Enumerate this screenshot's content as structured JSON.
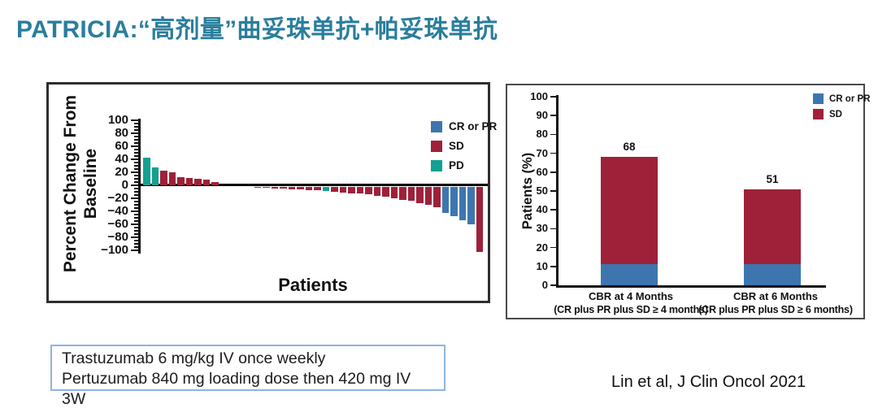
{
  "slide": {
    "title": "PATRICIA:“高剂量”曲妥珠单抗+帕妥珠单抗",
    "title_color": "#2A7E9C",
    "citation": "Lin et al, J Clin Oncol 2021",
    "dose_box": {
      "line1": "Trastuzumab 6 mg/kg IV once weekly",
      "line2": "Pertuzumab 840 mg loading dose then 420 mg IV 3W"
    }
  },
  "colors": {
    "cr_pr": "#3D76AE",
    "sd": "#9E2139",
    "pd": "#14A092",
    "axis": "#111111",
    "dose_box_border": "#8FB3E0"
  },
  "chart_data": [
    {
      "type": "bar",
      "subtype": "waterfall",
      "title": "",
      "xlabel": "Patients",
      "ylabel": "Percent Change From Baseline",
      "ylim": [
        -100,
        100
      ],
      "yticks": [
        100,
        80,
        60,
        40,
        20,
        0,
        -20,
        -40,
        -60,
        -80,
        -100
      ],
      "grid": false,
      "legend_position": "top-right",
      "legend": [
        {
          "label": "CR or PR",
          "color_key": "cr_pr"
        },
        {
          "label": "SD",
          "color_key": "sd"
        },
        {
          "label": "PD",
          "color_key": "pd"
        }
      ],
      "bars": [
        {
          "value": 42,
          "response": "PD"
        },
        {
          "value": 28,
          "response": "PD"
        },
        {
          "value": 23,
          "response": "SD"
        },
        {
          "value": 20,
          "response": "SD"
        },
        {
          "value": 12,
          "response": "SD"
        },
        {
          "value": 11,
          "response": "SD"
        },
        {
          "value": 10,
          "response": "SD"
        },
        {
          "value": 9,
          "response": "SD"
        },
        {
          "value": 5,
          "response": "SD"
        },
        {
          "value": 0,
          "response": "SD"
        },
        {
          "value": 0,
          "response": "SD"
        },
        {
          "value": 0,
          "response": "SD"
        },
        {
          "value": 0,
          "response": "SD"
        },
        {
          "value": -2,
          "response": "SD"
        },
        {
          "value": -2,
          "response": "SD"
        },
        {
          "value": -3,
          "response": "SD"
        },
        {
          "value": -3,
          "response": "SD"
        },
        {
          "value": -4,
          "response": "SD"
        },
        {
          "value": -4,
          "response": "SD"
        },
        {
          "value": -5,
          "response": "SD"
        },
        {
          "value": -6,
          "response": "SD"
        },
        {
          "value": -7,
          "response": "PD"
        },
        {
          "value": -8,
          "response": "SD"
        },
        {
          "value": -9,
          "response": "SD"
        },
        {
          "value": -10,
          "response": "SD"
        },
        {
          "value": -11,
          "response": "SD"
        },
        {
          "value": -12,
          "response": "SD"
        },
        {
          "value": -14,
          "response": "SD"
        },
        {
          "value": -16,
          "response": "SD"
        },
        {
          "value": -18,
          "response": "SD"
        },
        {
          "value": -20,
          "response": "SD"
        },
        {
          "value": -22,
          "response": "SD"
        },
        {
          "value": -25,
          "response": "SD"
        },
        {
          "value": -28,
          "response": "SD"
        },
        {
          "value": -32,
          "response": "SD"
        },
        {
          "value": -40,
          "response": "CR or PR"
        },
        {
          "value": -46,
          "response": "CR or PR"
        },
        {
          "value": -52,
          "response": "CR or PR"
        },
        {
          "value": -58,
          "response": "CR or PR"
        },
        {
          "value": -100,
          "response": "SD"
        }
      ]
    },
    {
      "type": "bar",
      "subtype": "stacked",
      "title": "",
      "ylabel": "Patients (%)",
      "ylim": [
        0,
        100
      ],
      "yticks": [
        0,
        10,
        20,
        30,
        40,
        50,
        60,
        70,
        80,
        90,
        100
      ],
      "grid": false,
      "legend_position": "top-right",
      "categories": [
        {
          "label": "CBR at 4 Months",
          "sub": "(CR plus PR plus SD ≥ 4 months)"
        },
        {
          "label": "CBR at 6 Months",
          "sub": "(CR plus PR plus SD ≥ 6 months)"
        }
      ],
      "series": [
        {
          "name": "CR or PR",
          "color_key": "cr_pr",
          "values": [
            11,
            11
          ]
        },
        {
          "name": "SD",
          "color_key": "sd",
          "values": [
            57,
            40
          ]
        }
      ],
      "totals": [
        68,
        51
      ]
    }
  ]
}
